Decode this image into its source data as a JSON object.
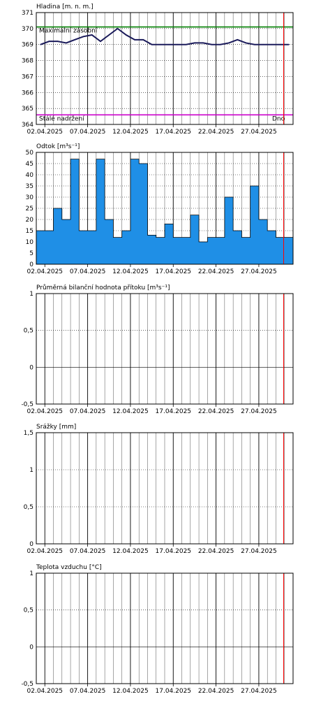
{
  "x_tick_labels": [
    "02.04.2025",
    "07.04.2025",
    "12.04.2025",
    "17.04.2025",
    "22.04.2025",
    "27.04.2025"
  ],
  "colors": {
    "grid": "#000000",
    "now_line": "#ff0000",
    "max_line": "#008000",
    "min_line": "#cc00cc",
    "level_line": "#1a1a5a",
    "flow_fill": "#1f8fe6",
    "flow_line": "#000000"
  },
  "chart_data": [
    {
      "type": "line",
      "title": "Hladina [m. n. m.]",
      "ylim": [
        364,
        371
      ],
      "y_ticks": [
        "371",
        "370",
        "369",
        "368",
        "367",
        "366",
        "365",
        "364"
      ],
      "x": [
        "01.04.2025",
        "02.04.2025",
        "03.04.2025",
        "04.04.2025",
        "05.04.2025",
        "06.04.2025",
        "07.04.2025",
        "08.04.2025",
        "09.04.2025",
        "10.04.2025",
        "11.04.2025",
        "12.04.2025",
        "13.04.2025",
        "14.04.2025",
        "15.04.2025",
        "16.04.2025",
        "17.04.2025",
        "18.04.2025",
        "19.04.2025",
        "20.04.2025",
        "21.04.2025",
        "22.04.2025",
        "23.04.2025",
        "24.04.2025",
        "25.04.2025",
        "26.04.2025",
        "27.04.2025",
        "28.04.2025",
        "29.04.2025",
        "30.04.2025"
      ],
      "series": [
        {
          "values": [
            369.0,
            369.2,
            369.2,
            369.1,
            369.3,
            369.5,
            369.6,
            369.2,
            369.6,
            370.0,
            369.6,
            369.3,
            369.3,
            369.0,
            369.0,
            369.0,
            369.0,
            369.0,
            369.1,
            369.1,
            369.0,
            369.0,
            369.1,
            369.3,
            369.1,
            369.0,
            369.0,
            369.0,
            369.0,
            369.0
          ]
        }
      ],
      "reference_lines": [
        {
          "label": "Maximální zásobní",
          "value": 370.1
        },
        {
          "label": "Stálé nadržení",
          "value": 364.6
        },
        {
          "label": "Dno",
          "value": 364.6
        }
      ]
    },
    {
      "type": "area",
      "title": "Odtok [m³s⁻¹]",
      "ylim": [
        0,
        50
      ],
      "y_ticks": [
        "50",
        "45",
        "40",
        "35",
        "30",
        "25",
        "20",
        "15",
        "10",
        "5",
        "0"
      ],
      "x": [
        "01.04.2025",
        "02.04.2025",
        "03.04.2025",
        "04.04.2025",
        "05.04.2025",
        "06.04.2025",
        "07.04.2025",
        "08.04.2025",
        "09.04.2025",
        "10.04.2025",
        "11.04.2025",
        "12.04.2025",
        "13.04.2025",
        "14.04.2025",
        "15.04.2025",
        "16.04.2025",
        "17.04.2025",
        "18.04.2025",
        "19.04.2025",
        "20.04.2025",
        "21.04.2025",
        "22.04.2025",
        "23.04.2025",
        "24.04.2025",
        "25.04.2025",
        "26.04.2025",
        "27.04.2025",
        "28.04.2025",
        "29.04.2025",
        "30.04.2025"
      ],
      "series": [
        {
          "values": [
            15,
            15,
            25,
            20,
            47,
            15,
            15,
            47,
            20,
            12,
            15,
            47,
            45,
            13,
            12,
            18,
            12,
            12,
            22,
            10,
            12,
            12,
            30,
            15,
            12,
            35,
            20,
            15,
            12,
            12
          ]
        }
      ]
    },
    {
      "type": "line",
      "title": "Průměrná bilanční hodnota přítoku   [m³s⁻¹]",
      "ylim": [
        -0.5,
        1
      ],
      "y_ticks": [
        "1",
        "0,5",
        "0",
        "-0,5"
      ],
      "series": []
    },
    {
      "type": "bar",
      "title": "Srážky [mm]",
      "ylim": [
        0,
        1.5
      ],
      "y_ticks": [
        "1,5",
        "1",
        "0,5",
        "0"
      ],
      "series": []
    },
    {
      "type": "line",
      "title": "Teplota vzduchu [°C]",
      "ylim": [
        -0.5,
        1
      ],
      "y_ticks": [
        "1",
        "0,5",
        "0",
        "-0,5"
      ],
      "series": []
    }
  ]
}
